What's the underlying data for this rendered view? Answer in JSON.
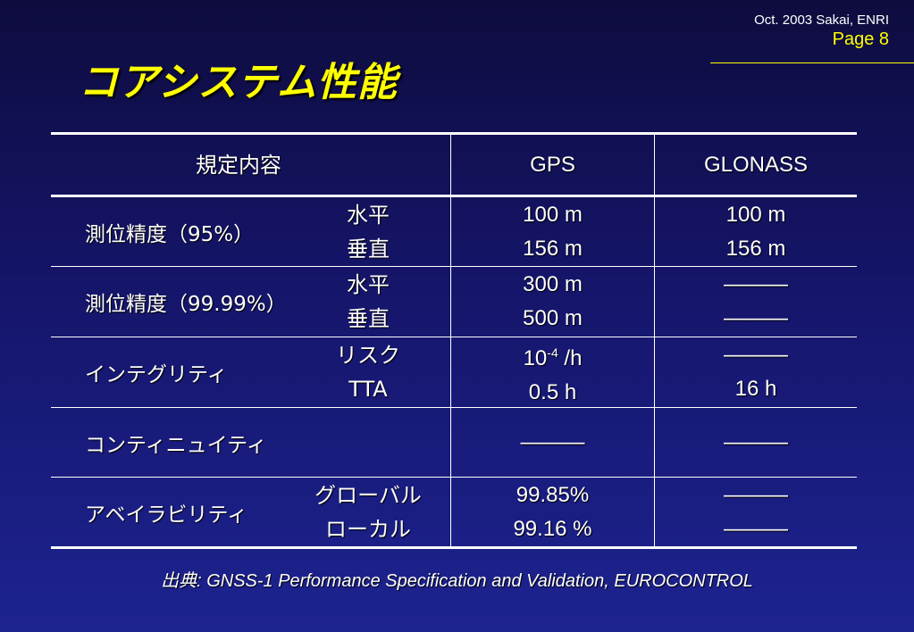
{
  "header": {
    "meta": "Oct. 2003 Sakai, ENRI",
    "page": "Page 8"
  },
  "title": "コアシステム性能",
  "table": {
    "headers": [
      "規定内容",
      "GPS",
      "GLONASS"
    ],
    "rows": [
      {
        "label": "測位精度（95%）",
        "subs": [
          "水平",
          "垂直"
        ],
        "gps": [
          "100 m",
          "156 m"
        ],
        "glonass": [
          "100 m",
          "156 m"
        ]
      },
      {
        "label": "測位精度（99.99%）",
        "subs": [
          "水平",
          "垂直"
        ],
        "gps": [
          "300 m",
          "500 m"
        ],
        "glonass": [
          "———",
          "———"
        ]
      },
      {
        "label": "インテグリティ",
        "subs": [
          "リスク",
          "TTA"
        ],
        "gps_base": "10",
        "gps_exp": "-4",
        "gps_unit": " /h",
        "gps2": "0.5 h",
        "glonass": [
          "———",
          "16 h"
        ]
      },
      {
        "label": "コンティニュイティ",
        "subs": [],
        "gps": [
          "———"
        ],
        "glonass": [
          "———"
        ]
      },
      {
        "label": "アベイラビリティ",
        "subs": [
          "グローバル",
          "ローカル"
        ],
        "gps": [
          "99.85%",
          "99.16 %"
        ],
        "glonass": [
          "———",
          "———"
        ]
      }
    ]
  },
  "footer": {
    "prefix": "出典",
    "text": ": GNSS-1 Performance Specification and Validation, EUROCONTROL"
  }
}
